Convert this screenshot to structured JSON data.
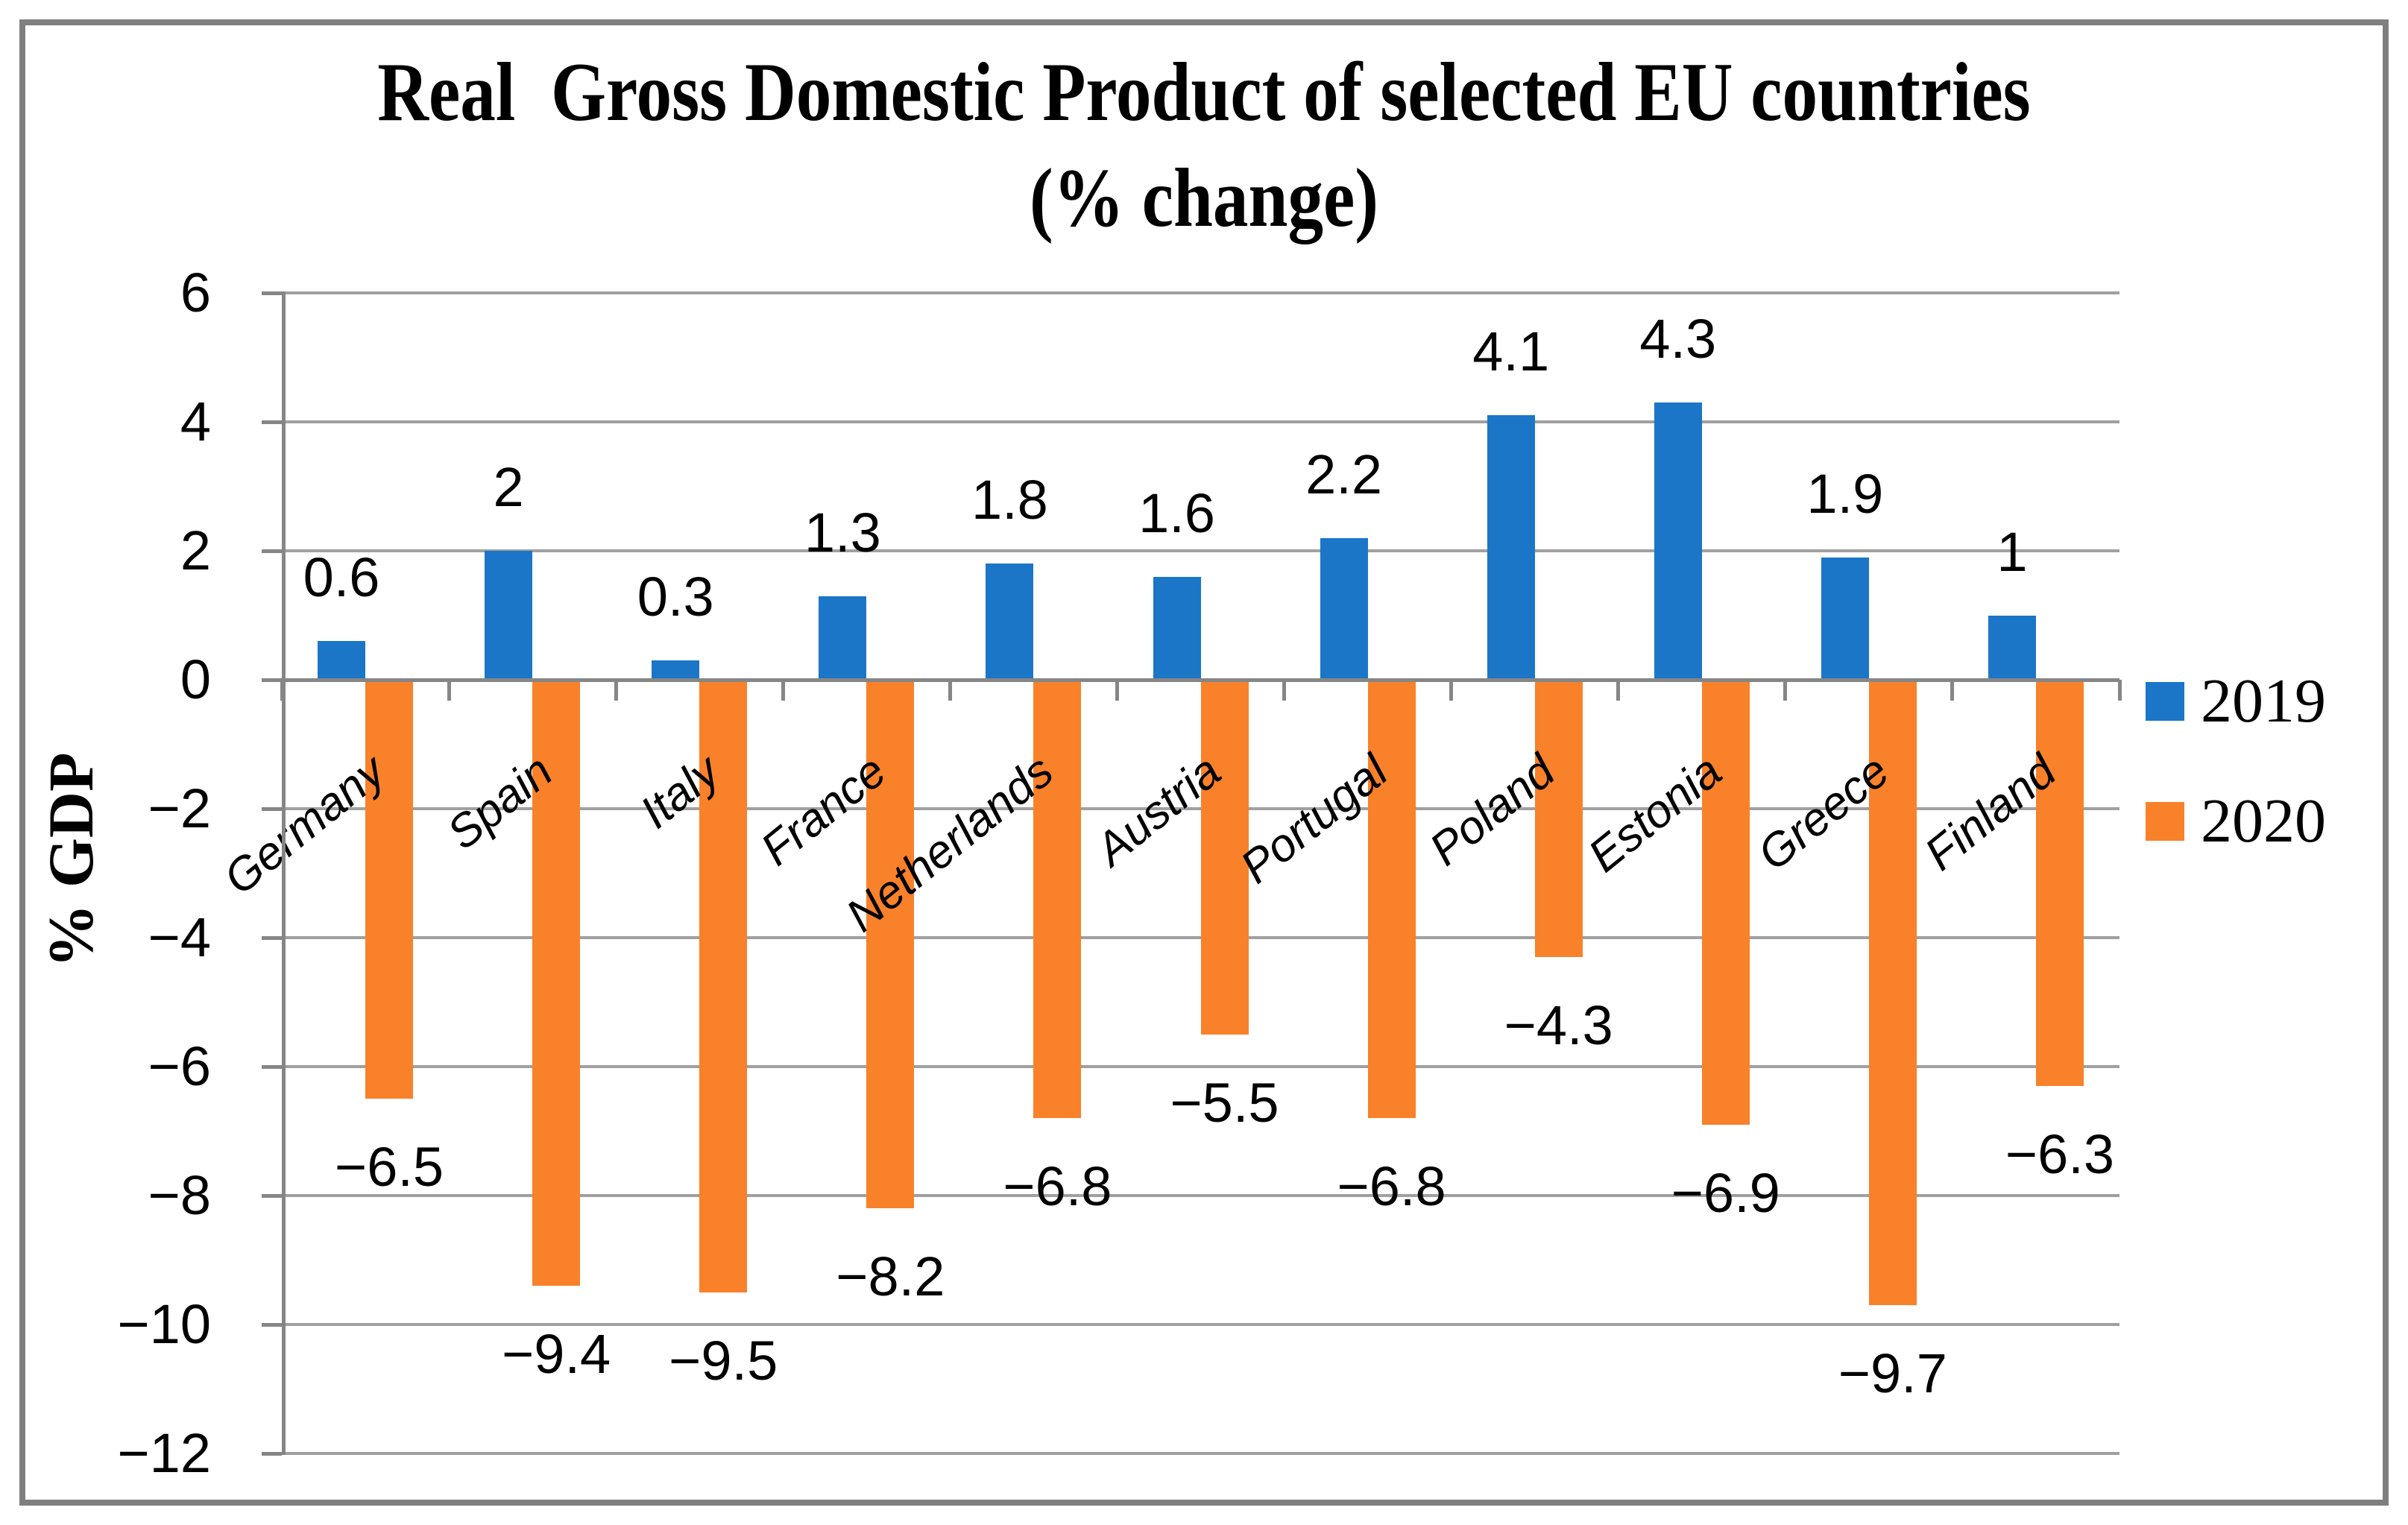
{
  "figure": {
    "background_color": "#FFFFFF",
    "border_color": "#7F7F7F"
  },
  "chart_data": {
    "type": "bar",
    "title_line1": "Real  Gross Domestic Product of selected EU countries",
    "title_line2": "(% change)",
    "ylabel": "% GDP",
    "xlabel": "",
    "categories": [
      "Germany",
      "Spain",
      "Italy",
      "France",
      "Netherlands",
      "Austria",
      "Portugal",
      "Poland",
      "Estonia",
      "Greece",
      "Finland"
    ],
    "series": [
      {
        "name": "2019",
        "color": "#1B76C8",
        "values": [
          0.6,
          2,
          0.3,
          1.3,
          1.8,
          1.6,
          2.2,
          4.1,
          4.3,
          1.9,
          1
        ]
      },
      {
        "name": "2020",
        "color": "#F9812A",
        "values": [
          -6.5,
          -9.4,
          -9.5,
          -8.2,
          -6.8,
          -5.5,
          -6.8,
          -4.3,
          -6.9,
          -9.7,
          -6.3
        ]
      }
    ],
    "data_labels": {
      "2019": [
        "0.6",
        "2",
        "0.3",
        "1.3",
        "1.8",
        "1.6",
        "2.2",
        "4.1",
        "4.3",
        "1.9",
        "1"
      ],
      "2020": [
        "−6.5",
        "−9.4",
        "−9.5",
        "−8.2",
        "−6.8",
        "−5.5",
        "−6.8",
        "−4.3",
        "−6.9",
        "−9.7",
        "−6.3"
      ]
    },
    "ylim": [
      -12,
      6
    ],
    "yticks": [
      6,
      4,
      2,
      0,
      -2,
      -4,
      -6,
      -8,
      -10,
      -12
    ],
    "grid": true,
    "legend_position": "right",
    "gridline_color": "#A0A0A0",
    "axis_color": "#868686"
  }
}
